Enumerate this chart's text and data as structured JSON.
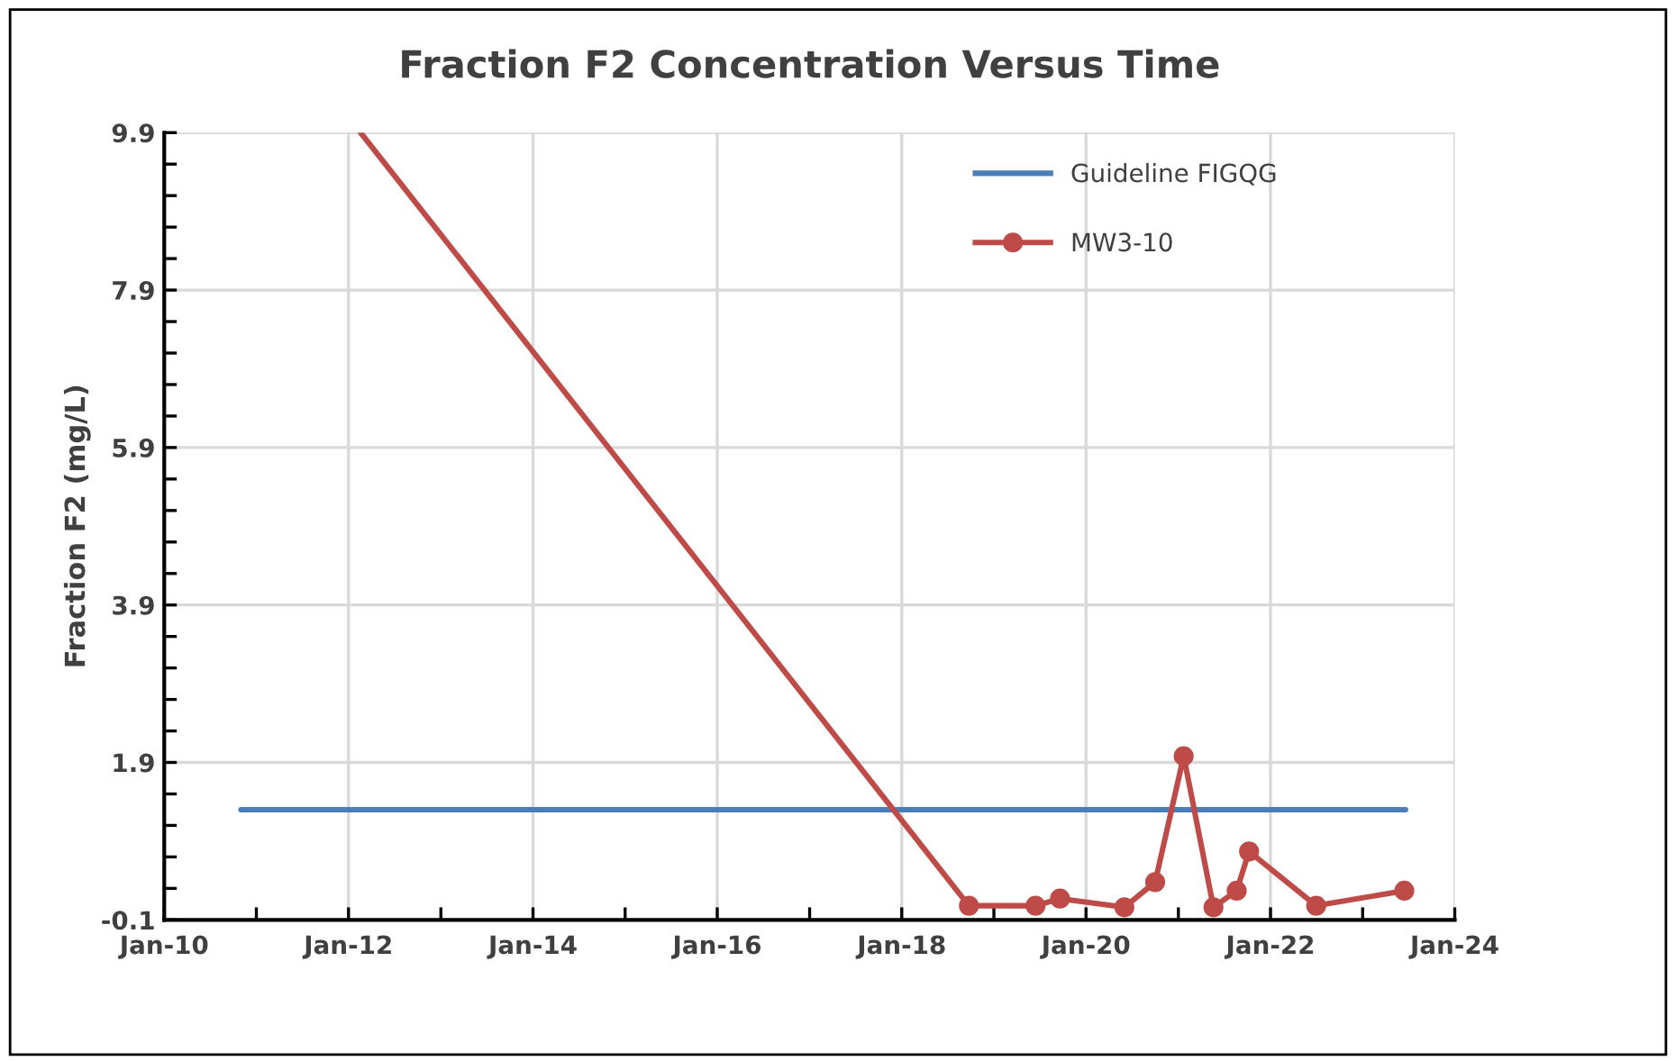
{
  "chart_data": {
    "type": "line",
    "title": "Fraction F2 Concentration Versus Time",
    "ylabel": "Fraction F2 (mg/L)",
    "xlim": [
      "2010-01-01",
      "2024-01-01"
    ],
    "xticks": [
      {
        "value": "2010-01-01",
        "label": "Jan-10"
      },
      {
        "value": "2011-01-01",
        "label": null
      },
      {
        "value": "2012-01-01",
        "label": "Jan-12"
      },
      {
        "value": "2013-01-01",
        "label": null
      },
      {
        "value": "2014-01-01",
        "label": "Jan-14"
      },
      {
        "value": "2015-01-01",
        "label": null
      },
      {
        "value": "2016-01-01",
        "label": "Jan-16"
      },
      {
        "value": "2017-01-01",
        "label": null
      },
      {
        "value": "2018-01-01",
        "label": "Jan-18"
      },
      {
        "value": "2019-01-01",
        "label": null
      },
      {
        "value": "2020-01-01",
        "label": "Jan-20"
      },
      {
        "value": "2021-01-01",
        "label": null
      },
      {
        "value": "2022-01-01",
        "label": "Jan-22"
      },
      {
        "value": "2023-01-01",
        "label": null
      },
      {
        "value": "2024-01-01",
        "label": "Jan-24"
      }
    ],
    "ylim": [
      -0.1,
      9.9
    ],
    "yticks": [
      -0.1,
      {
        "value": 0.3,
        "label": null
      },
      {
        "value": 0.7,
        "label": null
      },
      {
        "value": 1.1,
        "label": null
      },
      {
        "value": 1.5,
        "label": null
      },
      1.9,
      {
        "value": 2.3,
        "label": null
      },
      {
        "value": 2.7,
        "label": null
      },
      {
        "value": 3.1,
        "label": null
      },
      {
        "value": 3.5,
        "label": null
      },
      3.9,
      {
        "value": 4.3,
        "label": null
      },
      {
        "value": 4.7,
        "label": null
      },
      {
        "value": 5.1,
        "label": null
      },
      {
        "value": 5.5,
        "label": null
      },
      5.9,
      {
        "value": 6.3,
        "label": null
      },
      {
        "value": 6.7,
        "label": null
      },
      {
        "value": 7.1,
        "label": null
      },
      {
        "value": 7.5,
        "label": null
      },
      7.9,
      {
        "value": 8.3,
        "label": null
      },
      {
        "value": 8.7,
        "label": null
      },
      {
        "value": 9.1,
        "label": null
      },
      {
        "value": 9.5,
        "label": null
      },
      9.9
    ],
    "grid": true,
    "legend": "top right",
    "series": [
      {
        "name": "Guideline FIGQG",
        "color": "#4a7ebb",
        "marker": "none",
        "x": [
          "2010-11-01",
          "2023-06-20"
        ],
        "values": [
          1.3,
          1.3
        ]
      },
      {
        "name": "MW3-10",
        "color": "#be4b48",
        "marker": "circle",
        "x": [
          "2012-02-18",
          "2018-09-24",
          "2019-06-15",
          "2019-09-20",
          "2020-06-01",
          "2020-10-01",
          "2021-01-22",
          "2021-05-20",
          "2021-08-20",
          "2021-10-08",
          "2022-07-01",
          "2023-06-15"
        ],
        "values": [
          9.9,
          0.08,
          0.08,
          0.17,
          0.06,
          0.38,
          1.98,
          0.06,
          0.27,
          0.77,
          0.08,
          0.27
        ]
      }
    ]
  }
}
